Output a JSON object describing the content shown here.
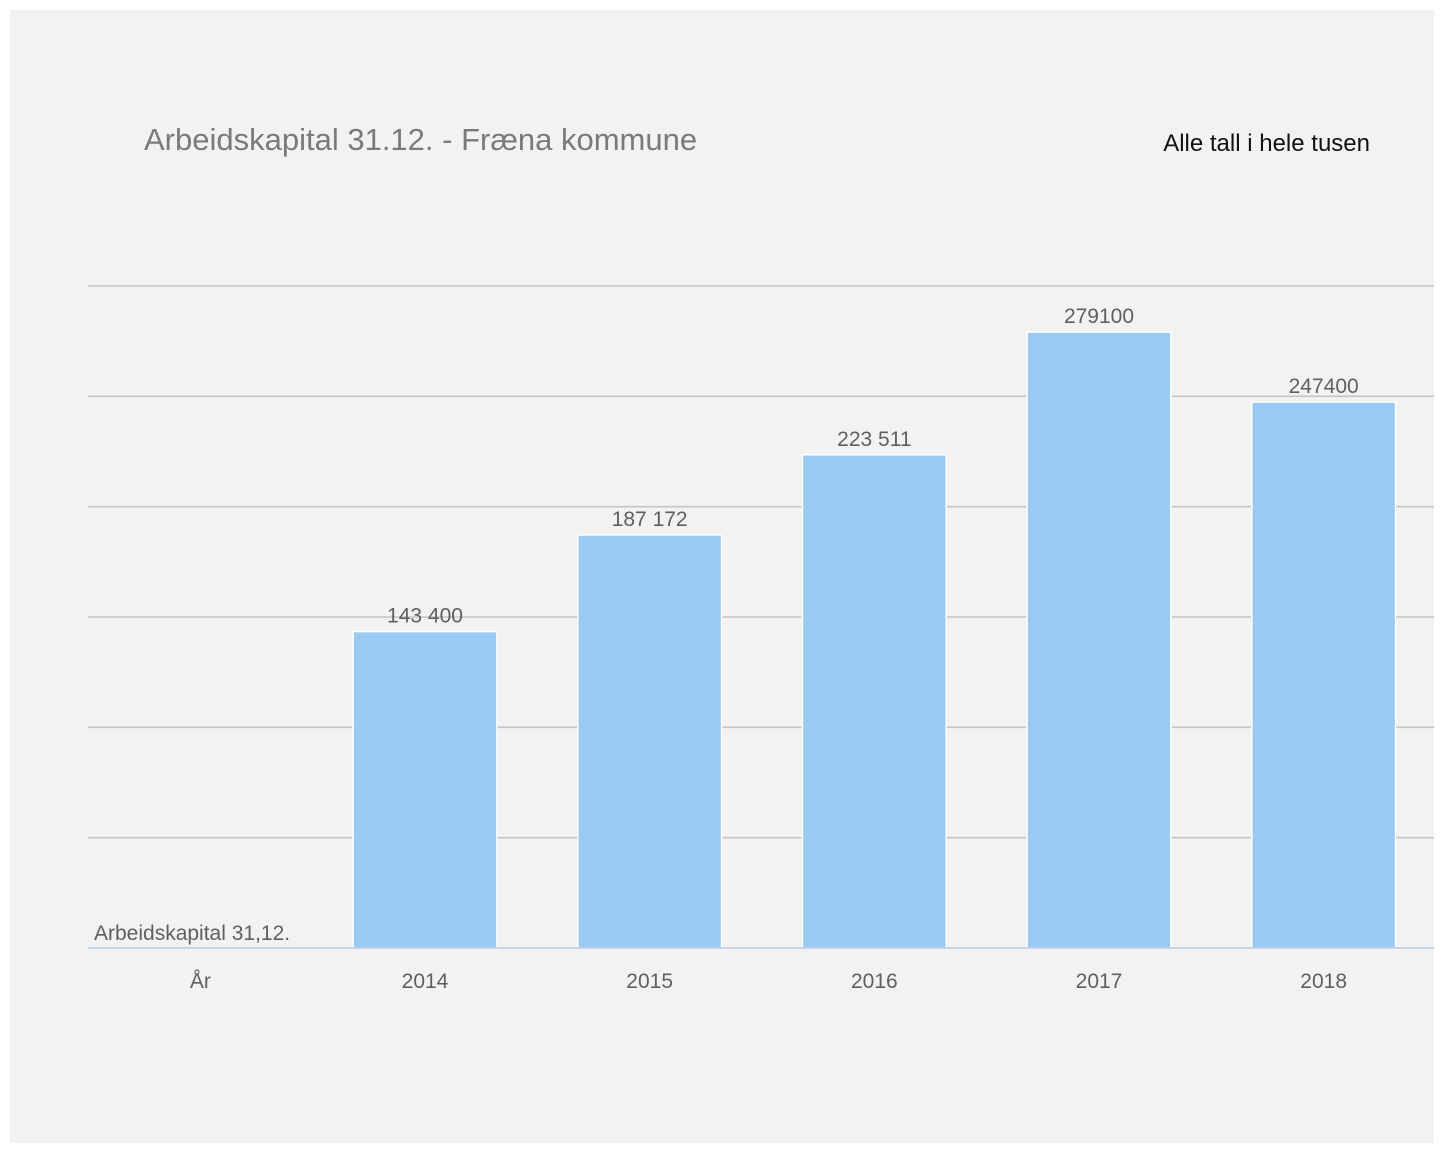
{
  "chart_data": {
    "type": "bar",
    "title": "Arbeidskapital 31.12. - Fræna kommune",
    "note": "Alle tall i hele tusen",
    "categories": [
      "År",
      "2014",
      "2015",
      "2016",
      "2017",
      "2018"
    ],
    "series": [
      {
        "name": "Arbeidskapital 31,12.",
        "values": [
          null,
          143400,
          187172,
          223511,
          279100,
          247400
        ],
        "labels": [
          "",
          "143 400",
          "187 172",
          "223 511",
          "279100",
          "247400"
        ],
        "color": "#99caf3"
      }
    ],
    "ylim": [
      0,
      300000
    ],
    "y_gridlines": [
      0,
      50000,
      100000,
      150000,
      200000,
      250000,
      300000
    ],
    "y_tick_labels_shown": false,
    "grid": true,
    "legend": "none"
  }
}
